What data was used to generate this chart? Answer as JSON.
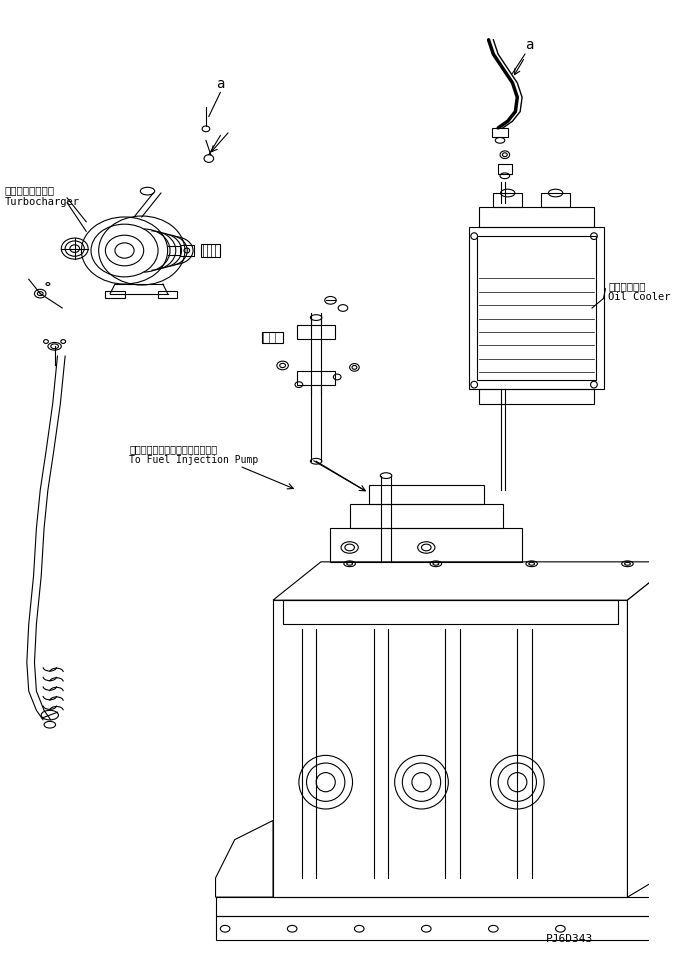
{
  "bg_color": "#ffffff",
  "line_color": "#000000",
  "text_color": "#000000",
  "title_code": "PJ6D343",
  "label_turbocharger_jp": "ターボチャージャ",
  "label_turbocharger_en": "Turbocharger",
  "label_oilcooler_jp": "オイルクーラ",
  "label_oilcooler_en": "Oil Cooler",
  "label_pump_jp": "フェルインジェクションポンプへ",
  "label_pump_en": "To Fuel Injection Pump",
  "label_a1": "a",
  "label_a2": "a",
  "figsize": [
    6.77,
    9.8
  ],
  "dpi": 100
}
